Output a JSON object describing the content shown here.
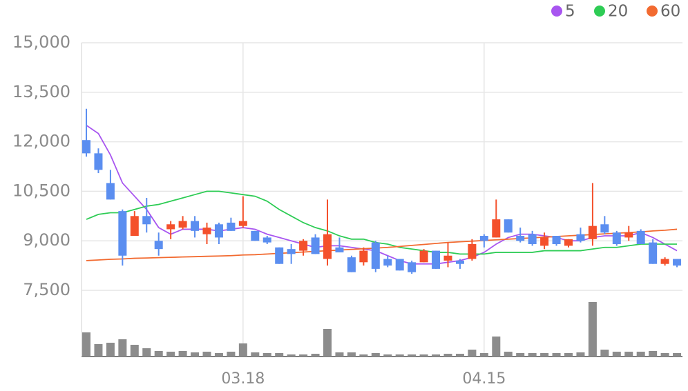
{
  "chart_data": {
    "type": "candlestick",
    "categories": [
      null,
      null,
      null,
      null,
      null,
      null,
      null,
      null,
      null,
      null,
      null,
      null,
      null,
      "03.18",
      null,
      null,
      null,
      null,
      null,
      null,
      null,
      null,
      null,
      null,
      null,
      null,
      null,
      null,
      null,
      null,
      null,
      null,
      null,
      "04.15",
      null,
      null,
      null,
      null,
      null,
      null,
      null,
      null,
      null,
      null,
      null,
      null,
      null,
      null,
      null,
      null
    ],
    "open": [
      12050,
      11650,
      10750,
      9900,
      9150,
      9750,
      9000,
      9350,
      9400,
      9600,
      9200,
      9500,
      9550,
      9450,
      9300,
      9100,
      8800,
      8750,
      8700,
      9100,
      8450,
      8800,
      8500,
      8350,
      8950,
      8450,
      8450,
      8350,
      8350,
      8700,
      8400,
      8400,
      8450,
      9150,
      9100,
      9650,
      9150,
      9200,
      8850,
      9150,
      8850,
      9200,
      9050,
      9500,
      9250,
      9100,
      9300,
      8950,
      8300,
      8450
    ],
    "high": [
      13000,
      11800,
      11150,
      9950,
      9900,
      10300,
      9250,
      9600,
      9750,
      9750,
      9550,
      9550,
      9700,
      10350,
      9300,
      9150,
      8800,
      8900,
      9050,
      9200,
      10250,
      9100,
      8550,
      8800,
      9000,
      8550,
      8450,
      8400,
      8750,
      8700,
      8950,
      8450,
      9050,
      9200,
      10250,
      9650,
      9400,
      9300,
      9250,
      9150,
      9050,
      9400,
      10750,
      9750,
      9300,
      9450,
      9350,
      9050,
      8500,
      8450
    ],
    "low": [
      11550,
      11050,
      10250,
      8250,
      9150,
      9250,
      8550,
      9050,
      9350,
      9100,
      8900,
      8900,
      9300,
      9400,
      9000,
      8900,
      8300,
      8300,
      8550,
      8600,
      8250,
      8650,
      8050,
      8250,
      8050,
      8200,
      8100,
      8000,
      8350,
      8150,
      8200,
      8150,
      8400,
      8800,
      9100,
      9250,
      8950,
      8850,
      8750,
      8850,
      8800,
      8950,
      8850,
      9200,
      8850,
      9000,
      8900,
      8300,
      8250,
      8200
    ],
    "close": [
      11650,
      11150,
      10250,
      8550,
      9750,
      9500,
      8750,
      9500,
      9600,
      9300,
      9400,
      9100,
      9300,
      9600,
      9000,
      8950,
      8300,
      8600,
      9000,
      8600,
      9200,
      8650,
      8050,
      8700,
      8150,
      8250,
      8100,
      8050,
      8700,
      8150,
      8550,
      8300,
      8900,
      9000,
      9650,
      9250,
      9000,
      8900,
      9100,
      8900,
      9050,
      9000,
      9450,
      9250,
      8900,
      9250,
      8900,
      8300,
      8450,
      8250
    ],
    "up_color": "#f4502b",
    "down_color": "#5b8ef0",
    "series": [
      {
        "name": "5",
        "color": "#a855f0",
        "values": [
          12500,
          12250,
          11600,
          10750,
          10350,
          9950,
          9400,
          9200,
          9350,
          9350,
          9350,
          9300,
          9350,
          9400,
          9350,
          9200,
          9100,
          9000,
          8900,
          8800,
          8850,
          8850,
          8800,
          8750,
          8700,
          8550,
          8400,
          8300,
          8300,
          8300,
          8350,
          8400,
          8500,
          8650,
          8900,
          9100,
          9200,
          9200,
          9150,
          9100,
          9000,
          9000,
          9100,
          9150,
          9150,
          9150,
          9250,
          9100,
          8900,
          8700
        ]
      },
      {
        "name": "20",
        "color": "#2ecc55",
        "values": [
          9650,
          9800,
          9850,
          9850,
          9950,
          10050,
          10100,
          10200,
          10300,
          10400,
          10500,
          10500,
          10450,
          10400,
          10350,
          10200,
          9950,
          9750,
          9550,
          9400,
          9300,
          9150,
          9050,
          9050,
          8950,
          8900,
          8800,
          8750,
          8700,
          8650,
          8650,
          8600,
          8600,
          8600,
          8650,
          8650,
          8650,
          8650,
          8700,
          8700,
          8700,
          8700,
          8750,
          8800,
          8800,
          8850,
          8900,
          8900,
          8900,
          8900
        ]
      },
      {
        "name": "60",
        "color": "#f26a30",
        "values": [
          8400,
          8420,
          8440,
          8450,
          8470,
          8480,
          8490,
          8500,
          8510,
          8520,
          8530,
          8540,
          8550,
          8570,
          8580,
          8600,
          8620,
          8640,
          8660,
          8680,
          8700,
          8720,
          8740,
          8760,
          8780,
          8800,
          8830,
          8860,
          8890,
          8920,
          8950,
          8970,
          8990,
          9010,
          9030,
          9050,
          9070,
          9090,
          9110,
          9130,
          9150,
          9170,
          9190,
          9210,
          9230,
          9250,
          9270,
          9300,
          9320,
          9350
        ]
      }
    ],
    "volume": [
      35,
      18,
      20,
      25,
      17,
      12,
      8,
      7,
      8,
      6,
      7,
      5,
      7,
      19,
      6,
      5,
      5,
      3,
      3,
      4,
      40,
      6,
      6,
      3,
      5,
      3,
      3,
      3,
      3,
      3,
      4,
      4,
      10,
      5,
      29,
      7,
      5,
      5,
      5,
      5,
      5,
      6,
      79,
      10,
      7,
      7,
      7,
      8,
      5,
      5
    ],
    "volume_color": "#8c8c8c",
    "volume_lim": [
      0,
      100
    ],
    "ylim": [
      7500,
      15000
    ],
    "yticks": [
      {
        "value": 7500,
        "label": "7,500"
      },
      {
        "value": 9000,
        "label": "9,000"
      },
      {
        "value": 10500,
        "label": "10,500"
      },
      {
        "value": 12000,
        "label": "12,000"
      },
      {
        "value": 13500,
        "label": "13,500"
      },
      {
        "value": 15000,
        "label": "15,000"
      }
    ],
    "grid": true
  }
}
